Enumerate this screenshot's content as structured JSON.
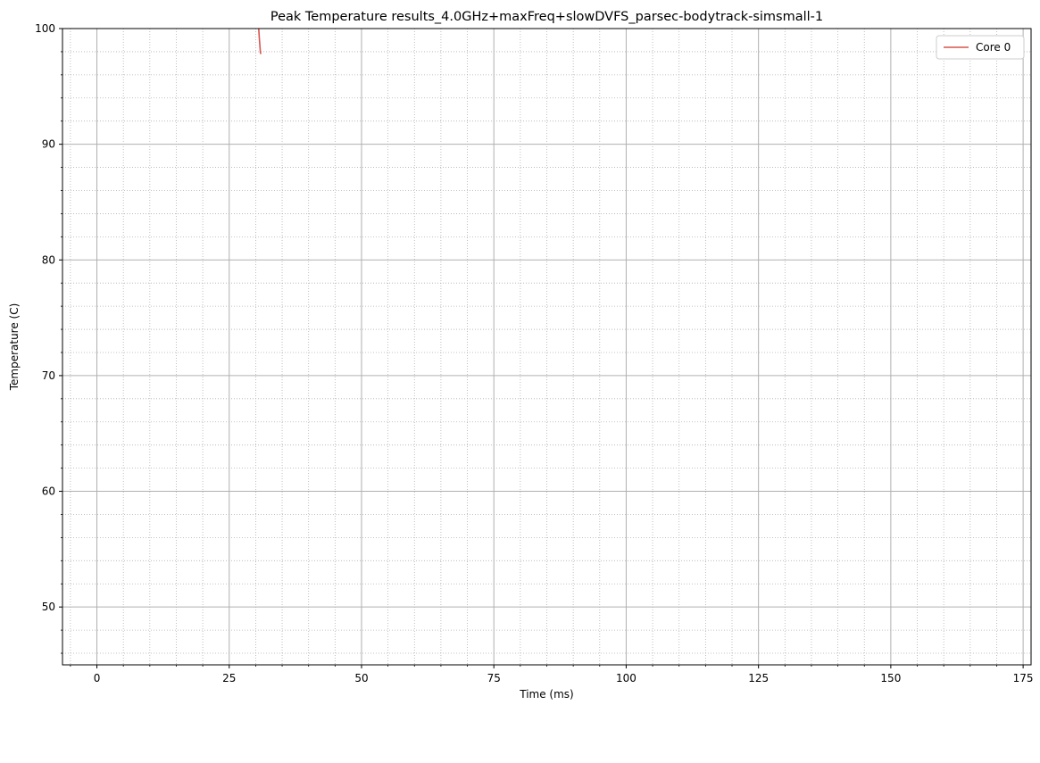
{
  "chart_data": {
    "type": "line",
    "title": "Peak Temperature results_4.0GHz+maxFreq+slowDVFS_parsec-bodytrack-simsmall-1",
    "xlabel": "Time (ms)",
    "ylabel": "Temperature (C)",
    "xlim": [
      -6.5,
      176.5
    ],
    "ylim": [
      45,
      100
    ],
    "xticks": [
      0,
      25,
      50,
      75,
      100,
      125,
      150,
      175
    ],
    "yticks": [
      50,
      60,
      70,
      80,
      90
    ],
    "ytick_top": 100,
    "grid": {
      "major": true,
      "minor": true,
      "minor_style": "dotted"
    },
    "legend": {
      "placement": "top-right"
    },
    "series": [
      {
        "name": "Core 0",
        "color": "#d9534f",
        "x": [
          30.5,
          30.6,
          30.7,
          30.8,
          30.9,
          31.0
        ],
        "y": [
          100.5,
          99.8,
          99.1,
          98.5,
          97.9,
          97.8
        ]
      }
    ]
  }
}
